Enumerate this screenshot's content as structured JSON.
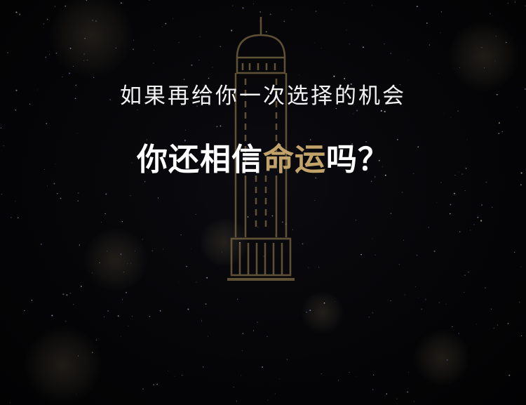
{
  "scene": {
    "subtitle": "如果再给你一次选择的机会",
    "headline_before": "你还相信",
    "headline_highlight": "命运",
    "headline_after": "吗？"
  },
  "colors": {
    "background": "#050507",
    "text": "#ffffff",
    "highlight": "#c2a46b",
    "tower_line": "#6e5e3d"
  },
  "icons": {
    "tower": "tower-illustration",
    "stars": "starfield"
  }
}
